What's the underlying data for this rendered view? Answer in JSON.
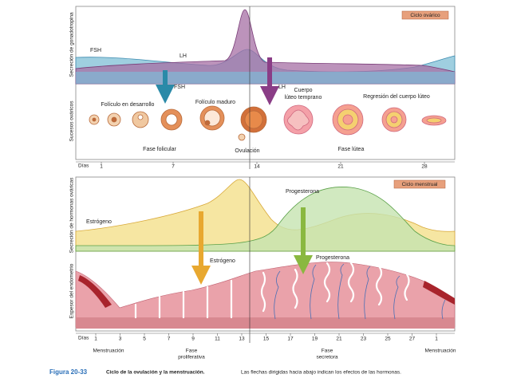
{
  "ovarian_panel": {
    "badge": "Ciclo ovárico",
    "gonadotropin_axis_label": "Secreción de gonadotropina",
    "events_axis_label": "Sucesos ováricos",
    "curve_labels": {
      "fsh": "FSH",
      "lh": "LH"
    },
    "arrow_labels": {
      "fsh": "FSH",
      "lh": "LH"
    },
    "stage_labels": {
      "developing": "Folículo en desarrollo",
      "mature": "Folículo maduro",
      "early_luteum": [
        "Cuerpo",
        "lúteo temprano"
      ],
      "regression": "Regresión del cuerpo lúteo"
    },
    "phase_labels": {
      "follicular": "Fase folicular",
      "ovulation": "Ovulación",
      "luteal": "Fase lútea"
    },
    "days_label": "Días",
    "days": [
      1,
      7,
      14,
      21,
      28
    ]
  },
  "menstrual_panel": {
    "badge": "Ciclo menstrual",
    "hormone_axis_label": "Secreción de hormonas ováricas",
    "endometrium_axis_label": "Espesor del endometrio",
    "curve_labels": {
      "estrogen": "Estrógeno",
      "progesterone": "Progesterona"
    },
    "arrow_labels": {
      "estrogen": "Estrógeno",
      "progesterone": "Progesterona"
    },
    "days_label": "Días",
    "days": [
      1,
      3,
      5,
      7,
      9,
      11,
      13,
      15,
      17,
      19,
      21,
      23,
      25,
      27,
      1
    ],
    "phase_labels": {
      "menstruation_start": "Menstruación",
      "proliferative": [
        "Fase",
        "proliferativa"
      ],
      "secretory": [
        "Fase",
        "secretora"
      ],
      "menstruation_end": "Menstruación"
    }
  },
  "caption": {
    "figure": "Figura 20-33",
    "title": "Ciclo de la ovulación y la menstruación.",
    "text": "Las flechas dirigidas hacia abajo indican los efectos de las hormonas."
  }
}
